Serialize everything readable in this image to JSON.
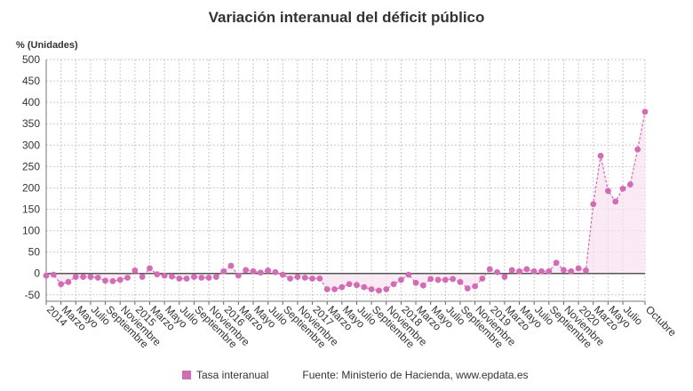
{
  "chart_data": {
    "type": "line",
    "title": "Variación interanual del déficit público",
    "ylabel": "% (Unidades)",
    "ylim": [
      -65,
      500
    ],
    "yticks": [
      -50,
      0,
      50,
      100,
      150,
      200,
      250,
      300,
      350,
      400,
      450,
      500
    ],
    "grid": true,
    "legend_placement": "bottom",
    "colors": {
      "series": "#d36bb5",
      "area": "#f7e1f0",
      "grid": "#cfc2d6",
      "zero_line": "#555555"
    },
    "series": [
      {
        "name": "Tasa interanual",
        "values": [
          -5,
          -3,
          -25,
          -20,
          -8,
          -8,
          -8,
          -10,
          -17,
          -18,
          -15,
          -10,
          7,
          -8,
          12,
          -2,
          -5,
          -7,
          -12,
          -12,
          -8,
          -10,
          -10,
          -8,
          5,
          18,
          -5,
          8,
          5,
          2,
          7,
          3,
          -3,
          -12,
          -8,
          -10,
          -12,
          -12,
          -37,
          -37,
          -32,
          -25,
          -27,
          -32,
          -37,
          -40,
          -37,
          -25,
          -15,
          -3,
          -22,
          -28,
          -13,
          -15,
          -15,
          -13,
          -20,
          -35,
          -30,
          -12,
          10,
          3,
          -8,
          8,
          5,
          10,
          5,
          5,
          5,
          25,
          8,
          5,
          12,
          7,
          162,
          275,
          193,
          168,
          198,
          208,
          290,
          378
        ]
      }
    ],
    "x_labels": [
      {
        "i": 0,
        "label": "2014"
      },
      {
        "i": 2,
        "label": "Marzo"
      },
      {
        "i": 4,
        "label": "Mayo"
      },
      {
        "i": 6,
        "label": "Julio"
      },
      {
        "i": 8,
        "label": "Septiembre"
      },
      {
        "i": 10,
        "label": "Noviembre"
      },
      {
        "i": 12,
        "label": "2015"
      },
      {
        "i": 14,
        "label": "Marzo"
      },
      {
        "i": 16,
        "label": "Mayo"
      },
      {
        "i": 18,
        "label": "Julio"
      },
      {
        "i": 20,
        "label": "Septiembre"
      },
      {
        "i": 22,
        "label": "Noviembre"
      },
      {
        "i": 24,
        "label": "2016"
      },
      {
        "i": 26,
        "label": "Marzo"
      },
      {
        "i": 28,
        "label": "Mayo"
      },
      {
        "i": 30,
        "label": "Julio"
      },
      {
        "i": 32,
        "label": "Septiembre"
      },
      {
        "i": 34,
        "label": "Noviembre"
      },
      {
        "i": 36,
        "label": "2017"
      },
      {
        "i": 38,
        "label": "Marzo"
      },
      {
        "i": 40,
        "label": "Mayo"
      },
      {
        "i": 42,
        "label": "Julio"
      },
      {
        "i": 44,
        "label": "Septiembre"
      },
      {
        "i": 46,
        "label": "Noviembre"
      },
      {
        "i": 48,
        "label": "2018"
      },
      {
        "i": 50,
        "label": "Marzo"
      },
      {
        "i": 52,
        "label": "Mayo"
      },
      {
        "i": 54,
        "label": "Julio"
      },
      {
        "i": 56,
        "label": "Septiembre"
      },
      {
        "i": 58,
        "label": "Noviembre"
      },
      {
        "i": 60,
        "label": "2019"
      },
      {
        "i": 62,
        "label": "Marzo"
      },
      {
        "i": 64,
        "label": "Mayo"
      },
      {
        "i": 66,
        "label": "Julio"
      },
      {
        "i": 68,
        "label": "Septiembre"
      },
      {
        "i": 70,
        "label": "Noviembre"
      },
      {
        "i": 72,
        "label": "2020"
      },
      {
        "i": 74,
        "label": "Marzo"
      },
      {
        "i": 76,
        "label": "Mayo"
      },
      {
        "i": 78,
        "label": "Julio"
      },
      {
        "i": 81,
        "label": "Octubre"
      }
    ],
    "source": "Fuente: Ministerio de Hacienda, www.epdata.es"
  }
}
